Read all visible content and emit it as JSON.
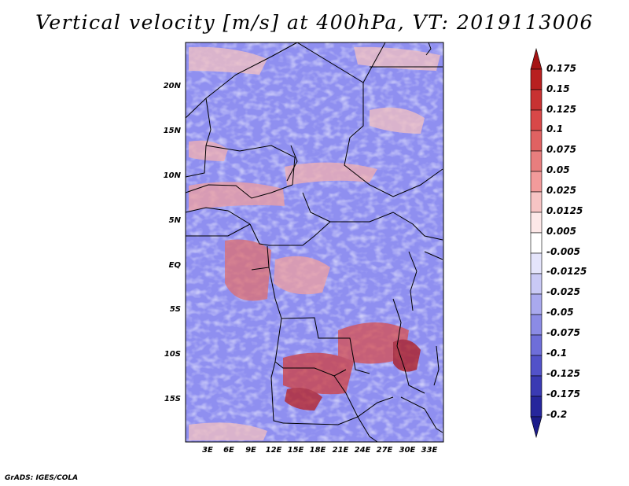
{
  "title": "Vertical velocity [m/s] at 400hPa, VT: 2019113006",
  "map": {
    "latitude_labels": [
      "20N",
      "15N",
      "10N",
      "5N",
      "EQ",
      "5S",
      "10S",
      "15S"
    ],
    "longitude_labels": [
      "3E",
      "6E",
      "9E",
      "12E",
      "15E",
      "18E",
      "21E",
      "24E",
      "27E",
      "30E",
      "33E"
    ]
  },
  "colorbar": {
    "labels": [
      "0.175",
      "0.15",
      "0.125",
      "0.1",
      "0.075",
      "0.05",
      "0.025",
      "0.0125",
      "0.005",
      "-0.005",
      "-0.0125",
      "-0.025",
      "-0.05",
      "-0.075",
      "-0.1",
      "-0.125",
      "-0.175",
      "-0.2"
    ],
    "colors": [
      "#a51414",
      "#b82020",
      "#c83232",
      "#d84848",
      "#e06262",
      "#e87e7e",
      "#f29b9b",
      "#f7c4c4",
      "#fde8e8",
      "#ffffff",
      "#e4e4fb",
      "#c9c9f5",
      "#a9a9ee",
      "#8b8be5",
      "#6e6ed9",
      "#5252c9",
      "#3a3ab3",
      "#26269c",
      "#1c1c8a"
    ]
  },
  "credit": "GrADS: IGES/COLA"
}
